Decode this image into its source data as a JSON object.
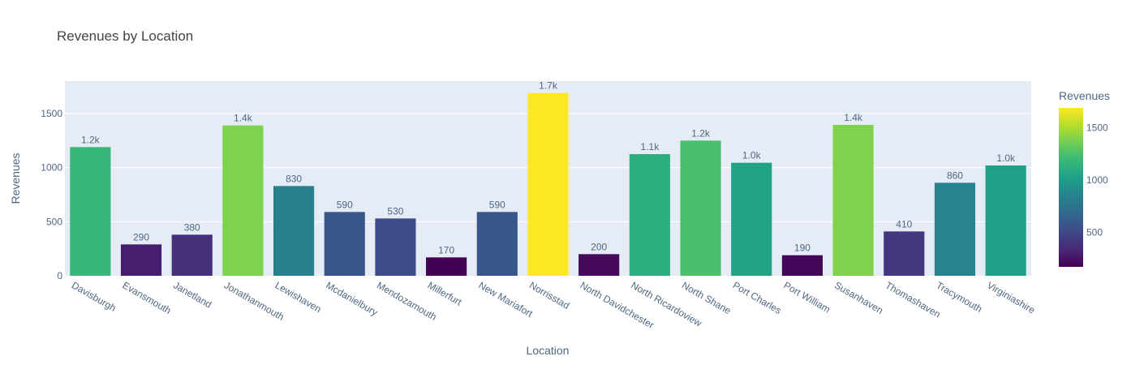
{
  "chart_data": {
    "type": "bar",
    "title": "Revenues by Location",
    "xlabel": "Location",
    "ylabel": "Revenues",
    "ylim": [
      0,
      1800
    ],
    "yticks": [
      0,
      500,
      1000,
      1500
    ],
    "categories": [
      "Davisburgh",
      "Evansmouth",
      "Janetland",
      "Jonathanmouth",
      "Lewishaven",
      "Mcdanielbury",
      "Mendozamouth",
      "Millerfurt",
      "New Mariafort",
      "Norrisstad",
      "North Davidchester",
      "North Ricardoview",
      "North Shane",
      "Port Charles",
      "Port William",
      "Susanhaven",
      "Thomashaven",
      "Tracymouth",
      "Virginiashire"
    ],
    "values": [
      1190,
      290,
      380,
      1390,
      830,
      590,
      530,
      170,
      590,
      1690,
      200,
      1125,
      1250,
      1045,
      190,
      1395,
      410,
      860,
      1020
    ],
    "data_labels": [
      "1.2k",
      "290",
      "380",
      "1.4k",
      "830",
      "590",
      "530",
      "170",
      "590",
      "1.7k",
      "200",
      "1.1k",
      "1.2k",
      "1.0k",
      "190",
      "1.4k",
      "410",
      "860",
      "1.0k"
    ],
    "colorbar": {
      "title": "Revenues",
      "colorscale": "Viridis",
      "range": [
        170,
        1690
      ],
      "ticks": [
        500,
        1000,
        1500
      ]
    },
    "grid": true
  }
}
